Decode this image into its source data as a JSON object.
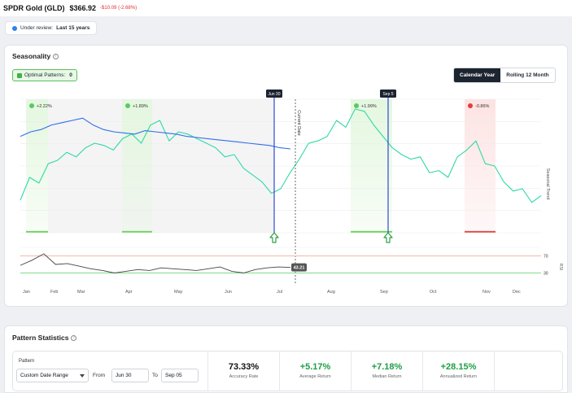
{
  "header": {
    "ticker": "SPDR Gold (GLD)",
    "price": "$366.92",
    "change": "-$10.09 (-2.68%)"
  },
  "review": {
    "label": "Under review:",
    "value": "Last 15 years"
  },
  "seasonality": {
    "title": "Seasonality",
    "optimal_label": "Optimal Patterns:",
    "optimal_count": "0",
    "toggle": [
      "Calendar Year",
      "Rolling 12 Month"
    ],
    "selected_toggle": "Calendar Year",
    "vertical_label": "Seasonal Trend",
    "rsi_label": "RSI"
  },
  "chart_data": {
    "type": "line",
    "xlabel": "",
    "ylabel": "Seasonal Trend",
    "months": [
      "Jan",
      "Feb",
      "Mar",
      "Apr",
      "May",
      "Jun",
      "Jul",
      "Aug",
      "Sep",
      "Oct",
      "Nov",
      "Dec"
    ],
    "markers": [
      {
        "label": "Jun 30",
        "color": "#2c4bd6"
      },
      {
        "label": "Sep 5",
        "color": "#2c4bd6"
      }
    ],
    "current_date_label": "Current Date",
    "pattern_badges": [
      {
        "text": "+2.22%",
        "type": "positive"
      },
      {
        "text": "+1.89%",
        "type": "positive"
      },
      {
        "text": "+1.99%",
        "type": "positive"
      },
      {
        "text": "-0.86%",
        "type": "negative"
      }
    ],
    "seasonal_series": [
      20,
      40,
      35,
      52,
      55,
      62,
      58,
      66,
      70,
      68,
      64,
      74,
      78,
      70,
      86,
      90,
      72,
      80,
      78,
      74,
      70,
      66,
      58,
      60,
      48,
      42,
      36,
      26,
      30,
      44,
      56,
      70,
      72,
      76,
      90,
      84,
      100,
      98,
      86,
      76,
      66,
      60,
      56,
      58,
      44,
      46,
      40,
      58,
      64,
      72,
      52,
      50,
      36,
      28,
      30,
      18,
      24
    ],
    "current_year_series": [
      76,
      80,
      82,
      86,
      88,
      90,
      92,
      86,
      82,
      80,
      79,
      78,
      81,
      80,
      79,
      78,
      76,
      75,
      74,
      73,
      72,
      71,
      70,
      69,
      68,
      66,
      65
    ],
    "rsi": {
      "upper": 70,
      "lower": 30,
      "current": "43.21",
      "series": [
        48,
        60,
        75,
        50,
        52,
        46,
        40,
        36,
        30,
        34,
        38,
        36,
        42,
        40,
        38,
        36,
        40,
        44,
        34,
        30,
        38,
        42,
        44,
        43
      ]
    }
  },
  "stats": {
    "title": "Pattern Statistics",
    "pattern_label": "Pattern",
    "select_value": "Custom Date Range",
    "from_label": "From",
    "from_value": "Jun 30",
    "to_label": "To",
    "to_value": "Sep 05",
    "items": [
      {
        "value": "73.33%",
        "label": "Accuracy Rate",
        "color": "#111111"
      },
      {
        "value": "+5.17%",
        "label": "Average Return",
        "color": "#1e9e46"
      },
      {
        "value": "+7.18%",
        "label": "Median Return",
        "color": "#1e9e46"
      },
      {
        "value": "+28.15%",
        "label": "Annualized Return",
        "color": "#1e9e46"
      }
    ]
  }
}
